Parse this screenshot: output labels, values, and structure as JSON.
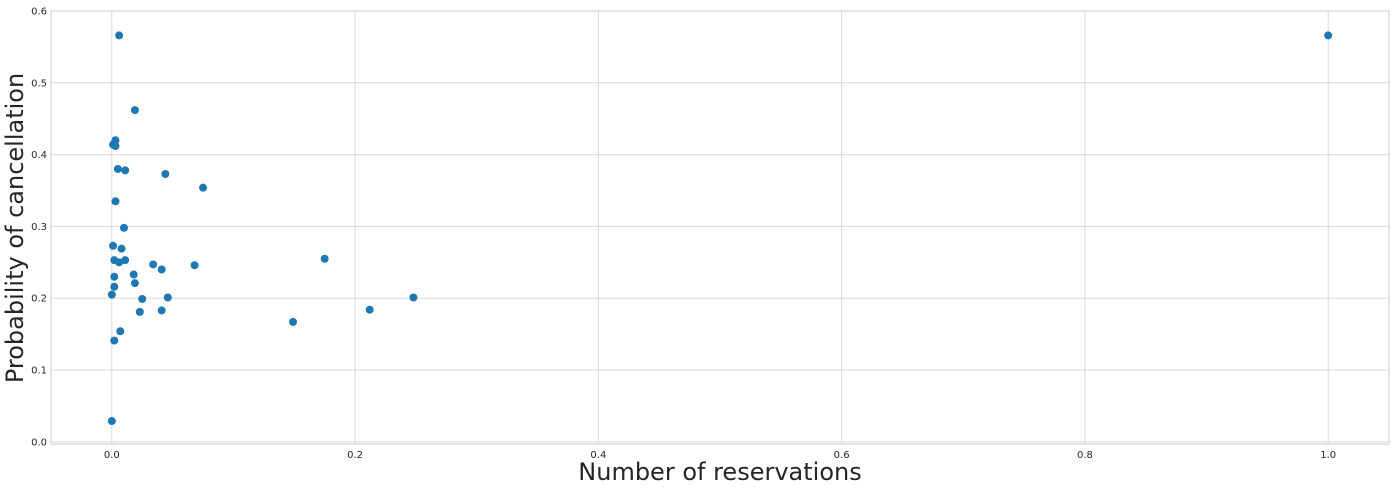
{
  "chart_data": {
    "type": "scatter",
    "title": "",
    "xlabel": "Number of reservations",
    "ylabel": "Probability of cancellation",
    "xlim": [
      -0.05,
      1.05
    ],
    "ylim": [
      -0.003,
      0.6
    ],
    "xticks": [
      0.0,
      0.2,
      0.4,
      0.6,
      0.8,
      1.0
    ],
    "xtick_labels": [
      "0.0",
      "0.2",
      "0.4",
      "0.6",
      "0.8",
      "1.0"
    ],
    "yticks": [
      0.0,
      0.1,
      0.2,
      0.3,
      0.4,
      0.5,
      0.6
    ],
    "ytick_labels": [
      "0.0",
      "0.1",
      "0.2",
      "0.3",
      "0.4",
      "0.5",
      "0.6"
    ],
    "grid": true,
    "color": "#1f77b4",
    "series": [
      {
        "x": [
          0.006,
          0.019,
          0.003,
          0.001,
          0.003,
          0.005,
          0.011,
          0.044,
          0.075,
          0.003,
          0.01,
          0.001,
          0.008,
          0.002,
          0.006,
          0.011,
          0.002,
          0.034,
          0.041,
          0.068,
          0.175,
          0.018,
          0.019,
          0.002,
          0.0,
          0.025,
          0.046,
          0.023,
          0.041,
          0.212,
          0.248,
          0.149,
          0.007,
          0.002,
          0.0,
          1.0
        ],
        "y": [
          0.566,
          0.462,
          0.42,
          0.414,
          0.412,
          0.38,
          0.378,
          0.373,
          0.354,
          0.335,
          0.298,
          0.273,
          0.269,
          0.253,
          0.25,
          0.253,
          0.23,
          0.247,
          0.24,
          0.246,
          0.255,
          0.233,
          0.221,
          0.216,
          0.205,
          0.199,
          0.201,
          0.181,
          0.183,
          0.184,
          0.201,
          0.167,
          0.154,
          0.141,
          0.029,
          0.566
        ]
      }
    ]
  }
}
